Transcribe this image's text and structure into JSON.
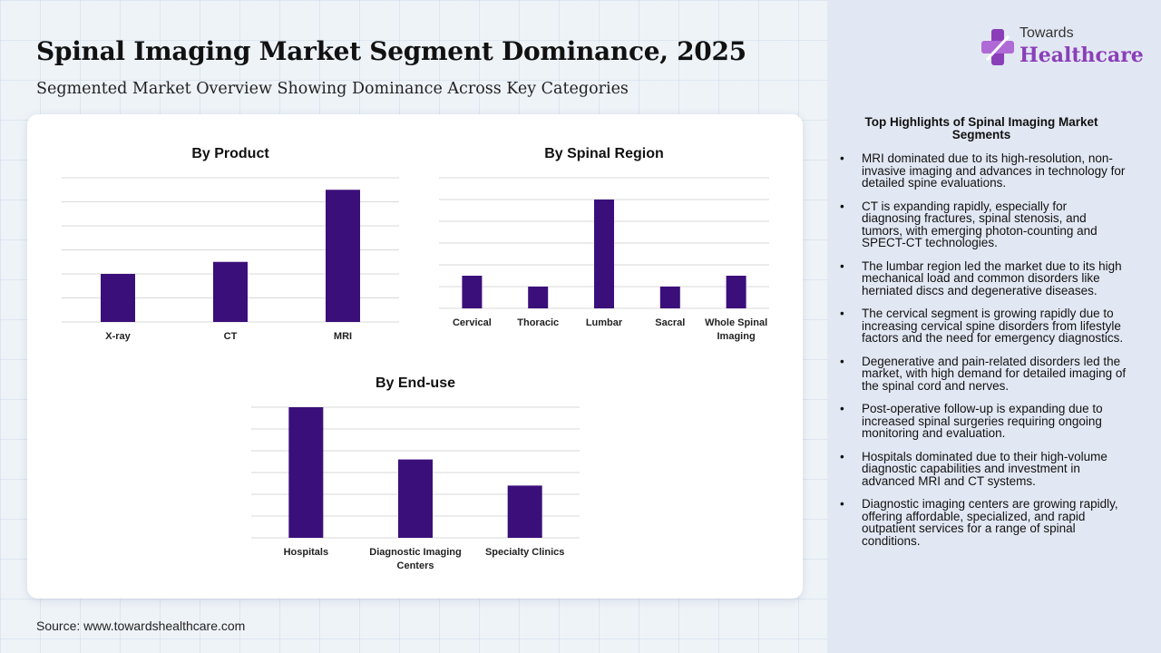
{
  "title": "Spinal Imaging Market Segment Dominance, 2025",
  "subtitle": "Segmented Market Overview Showing Dominance Across Key Categories",
  "source": "Source: www.towardshealthcare.com",
  "logo": {
    "top": "Towards",
    "bottom": "Healthcare"
  },
  "colors": {
    "bar": "#3b0f7a",
    "logo_accent": "#8a3fb8"
  },
  "chart_data": [
    {
      "type": "bar",
      "title": "By Product",
      "categories": [
        "X-ray",
        "CT",
        "MRI"
      ],
      "values": [
        2,
        2.5,
        5.5
      ],
      "ylim": [
        0,
        6
      ],
      "grid": true
    },
    {
      "type": "bar",
      "title": "By Spinal Region",
      "categories": [
        "Cervical",
        "Thoracic",
        "Lumbar",
        "Sacral",
        "Whole Spinal Imaging"
      ],
      "values": [
        1.5,
        1,
        5,
        1,
        1.5
      ],
      "ylim": [
        0,
        6
      ],
      "grid": true
    },
    {
      "type": "bar",
      "title": "By End-use",
      "categories": [
        "Hospitals",
        "Diagnostic Imaging Centers",
        "Specialty Clinics"
      ],
      "values": [
        5,
        3,
        2
      ],
      "ylim": [
        0,
        5
      ],
      "grid": true
    }
  ],
  "highlights": {
    "title": "Top Highlights of Spinal Imaging Market Segments",
    "items": [
      "MRI dominated due to its high-resolution, non-invasive imaging and advances in technology for detailed spine evaluations.",
      "CT is expanding rapidly, especially for diagnosing fractures, spinal stenosis, and tumors, with emerging photon-counting and SPECT-CT technologies.",
      "The lumbar region led the market due to its high mechanical load and common disorders like herniated discs and degenerative diseases.",
      "The cervical segment is growing rapidly due to increasing cervical spine disorders from lifestyle factors and the need for emergency diagnostics.",
      "Degenerative and pain-related disorders led the market, with high demand for detailed imaging of the spinal cord and nerves.",
      "Post-operative follow-up is expanding due to increased spinal surgeries requiring ongoing monitoring and evaluation.",
      "Hospitals dominated due to their high-volume diagnostic capabilities and investment in advanced MRI and CT systems.",
      "Diagnostic imaging centers are growing rapidly, offering affordable, specialized, and rapid outpatient services for a range of spinal conditions."
    ]
  }
}
